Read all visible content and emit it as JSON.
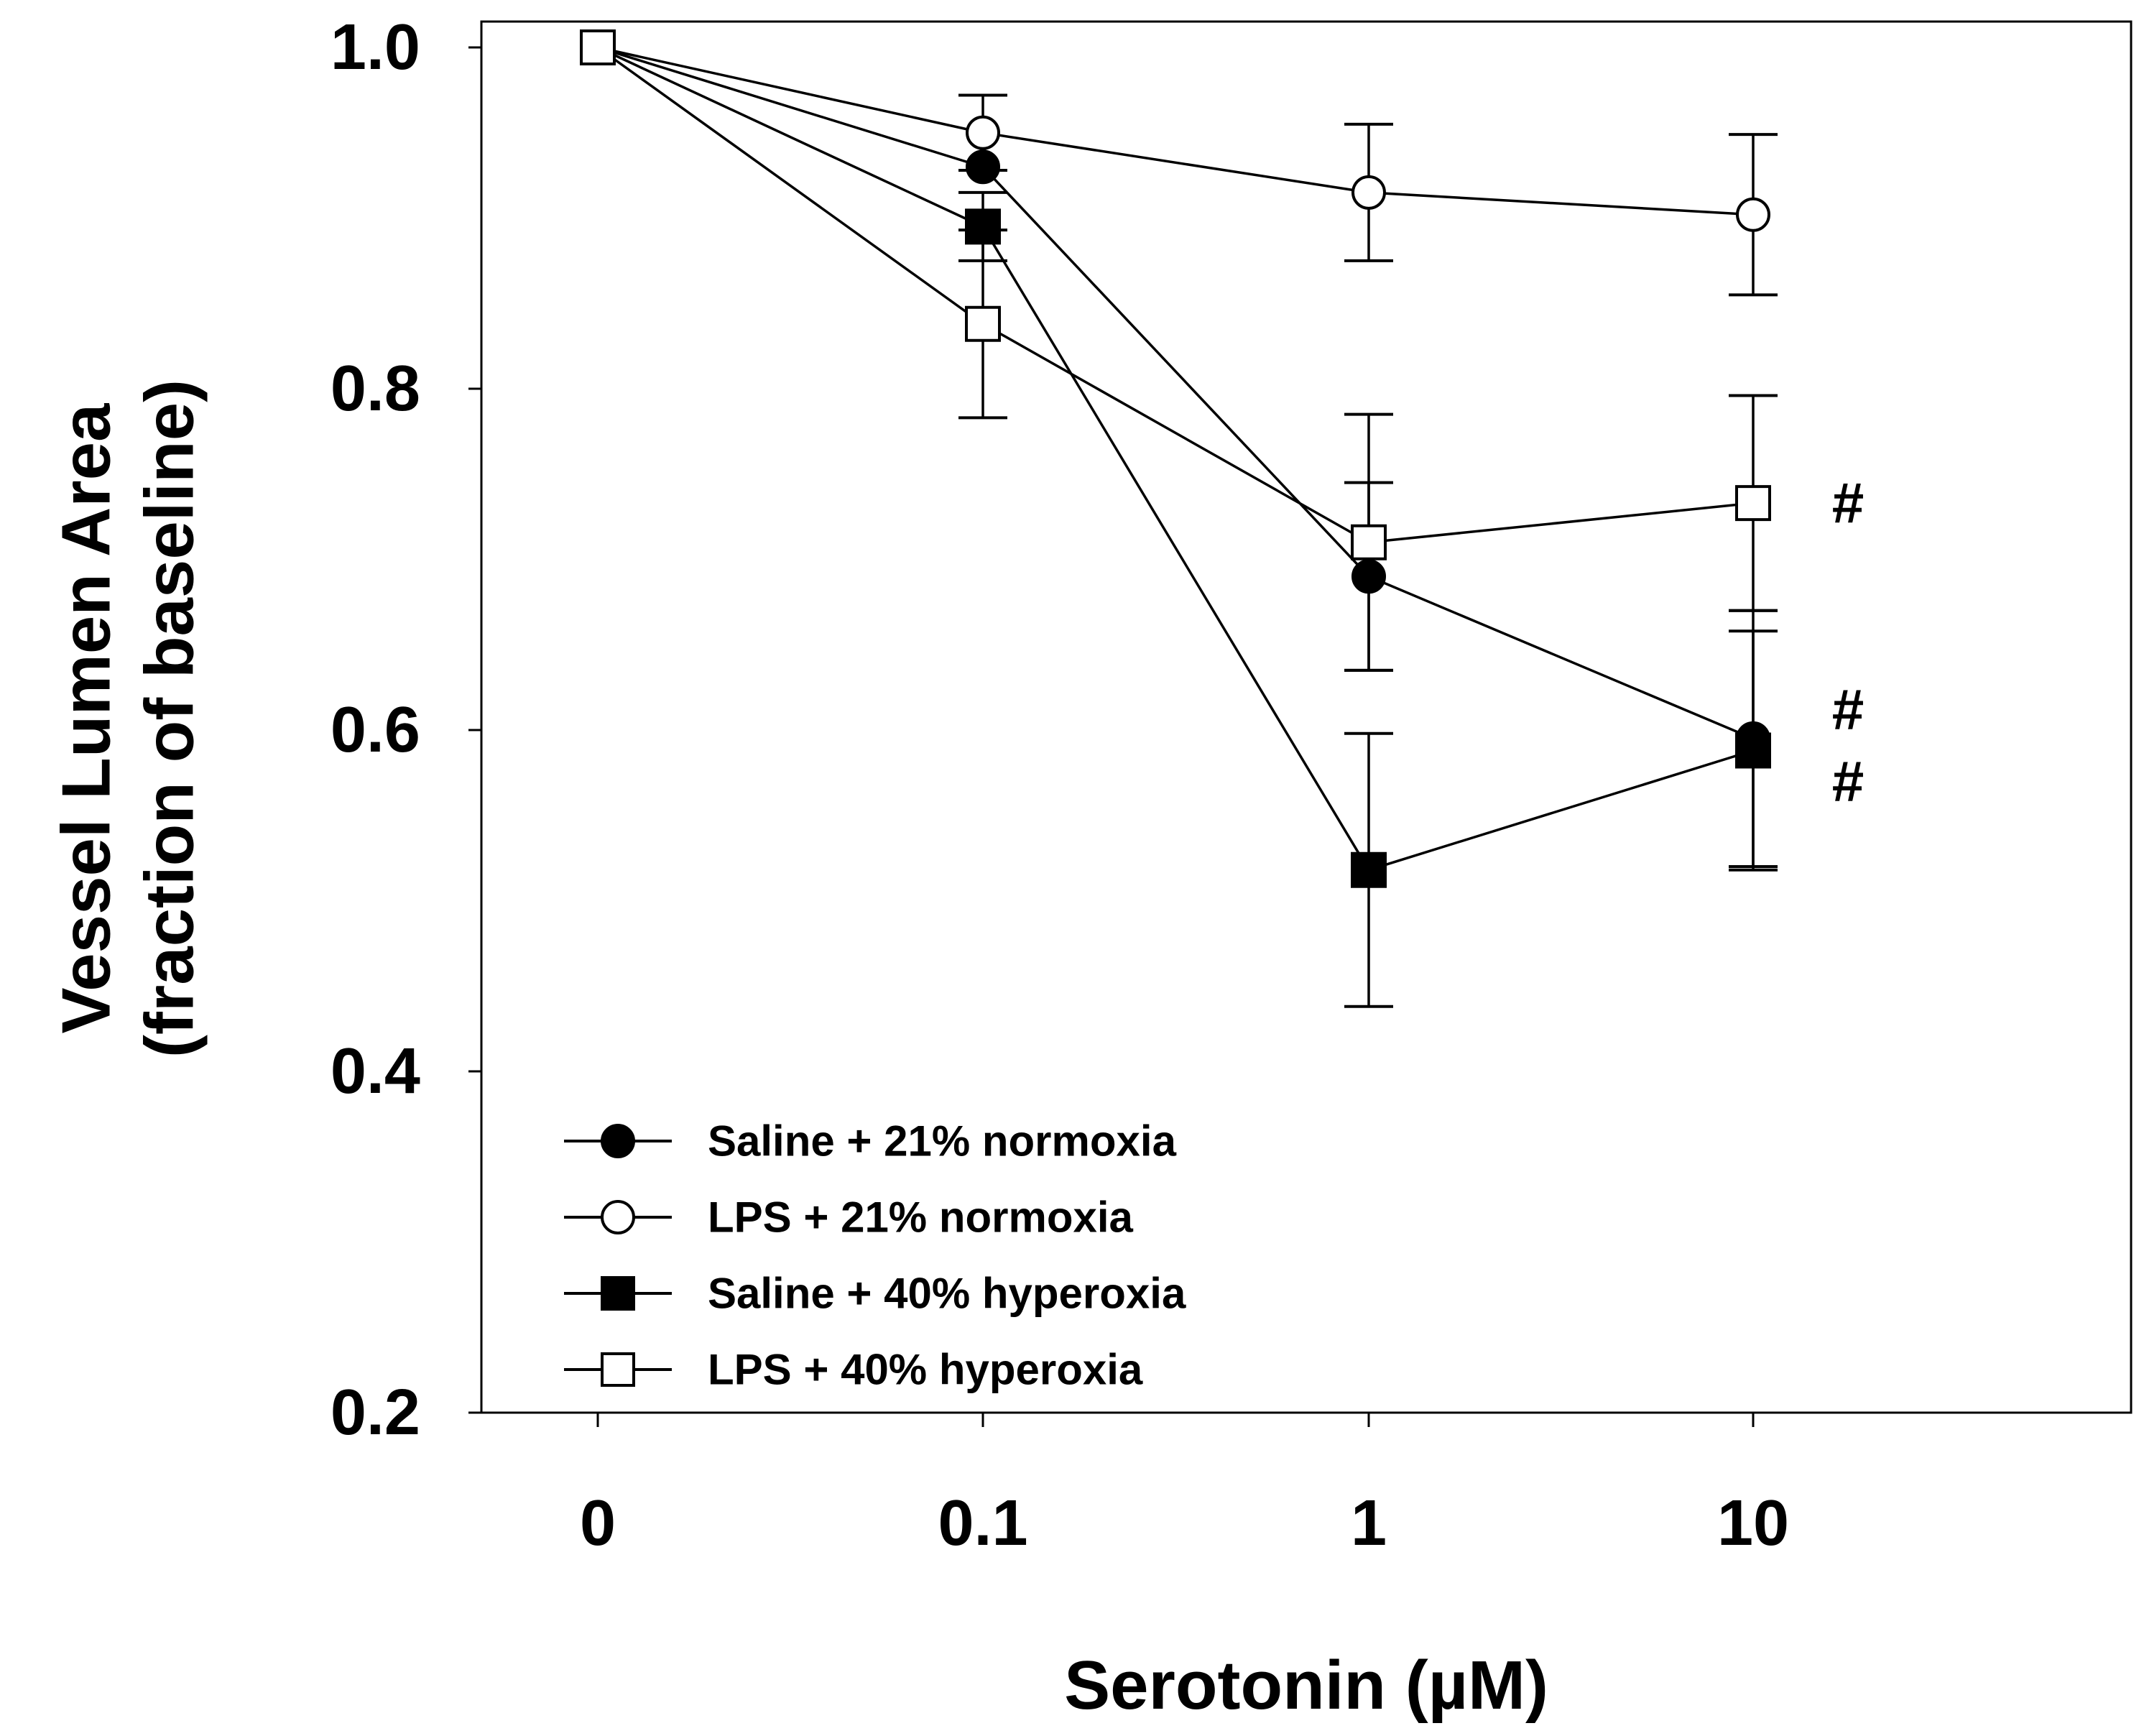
{
  "chart_data": {
    "type": "line",
    "xlabel": "Serotonin (µM)",
    "ylabel_line1": "Vessel Lumen Area",
    "ylabel_line2": "(fraction of baseline)",
    "categories": [
      "0",
      "0.1",
      "1",
      "10"
    ],
    "yticks": [
      "0.2",
      "0.4",
      "0.6",
      "0.8",
      "1.0"
    ],
    "ytick_values": [
      0.2,
      0.4,
      0.6,
      0.8,
      1.0
    ],
    "ylim": [
      0.2,
      1.0
    ],
    "grid": false,
    "legend_position": "bottom-left",
    "series": [
      {
        "name": "Saline + 21% normoxia",
        "marker": "circle",
        "fill": "#000000",
        "values": [
          1.0,
          0.93,
          0.69,
          0.595
        ],
        "errors": [
          0,
          0,
          0.055,
          0.075
        ]
      },
      {
        "name": "LPS + 21% normoxia",
        "marker": "circle",
        "fill": "#ffffff",
        "values": [
          1.0,
          0.95,
          0.915,
          0.902
        ],
        "errors": [
          0,
          0.022,
          0.04,
          0.047
        ]
      },
      {
        "name": "Saline + 40% hyperoxia",
        "marker": "square",
        "fill": "#000000",
        "values": [
          1.0,
          0.895,
          0.518,
          0.588
        ],
        "errors": [
          0,
          0.02,
          0.08,
          0.07
        ]
      },
      {
        "name": "LPS + 40% hyperoxia",
        "marker": "square",
        "fill": "#ffffff",
        "values": [
          1.0,
          0.838,
          0.71,
          0.733
        ],
        "errors": [
          0,
          0.055,
          0.075,
          0.063
        ]
      }
    ],
    "annotations": [
      {
        "text": "#",
        "x_index": 3,
        "y": 0.733
      },
      {
        "text": "#",
        "x_index": 3,
        "y": 0.612
      },
      {
        "text": "#",
        "x_index": 3,
        "y": 0.57
      }
    ]
  }
}
